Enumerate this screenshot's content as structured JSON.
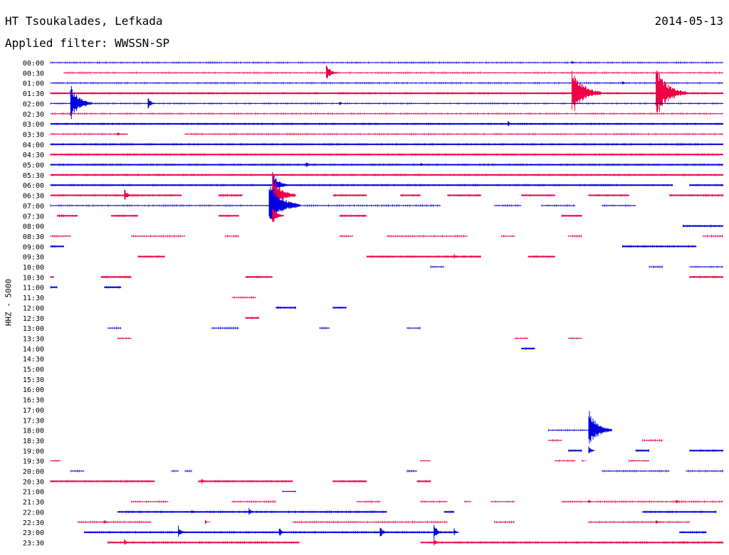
{
  "header": {
    "station": "HT Tsoukalades, Lefkada",
    "date": "2014-05-13",
    "filter": "Applied filter: WWSSN-SP",
    "channel_label": "HHZ - 5000"
  },
  "colors": {
    "even_row": "#0000e0",
    "odd_row": "#ee0044",
    "background": "#ffffff"
  },
  "chart_data": {
    "type": "helicorder",
    "row_interval_minutes": 30,
    "ylabel": "HHZ - 5000",
    "rows": [
      {
        "label": "00:00",
        "segments": [
          [
            0.0,
            1.0,
            1
          ]
        ],
        "events": [
          [
            0.775,
            3
          ]
        ]
      },
      {
        "label": "00:30",
        "segments": [
          [
            0.02,
            1.0,
            1
          ]
        ],
        "events": [
          [
            0.41,
            14
          ]
        ]
      },
      {
        "label": "01:00",
        "segments": [
          [
            0.0,
            1.0,
            1
          ]
        ],
        "events": [
          [
            0.85,
            3
          ]
        ]
      },
      {
        "label": "01:30",
        "segments": [
          [
            0.0,
            1.0,
            2
          ]
        ],
        "events": [
          [
            0.775,
            38
          ],
          [
            0.9,
            40
          ]
        ]
      },
      {
        "label": "02:00",
        "segments": [
          [
            0.0,
            1.0,
            1
          ]
        ],
        "events": [
          [
            0.03,
            28
          ],
          [
            0.145,
            10
          ],
          [
            0.43,
            3
          ]
        ]
      },
      {
        "label": "02:30",
        "segments": [
          [
            0.0,
            1.0,
            1
          ]
        ],
        "events": []
      },
      {
        "label": "03:00",
        "segments": [
          [
            0.0,
            1.0,
            2
          ]
        ],
        "events": [
          [
            0.68,
            5
          ]
        ]
      },
      {
        "label": "03:30",
        "segments": [
          [
            0.0,
            0.115,
            1
          ],
          [
            0.2,
            1.0,
            1
          ]
        ],
        "events": [
          [
            0.1,
            3
          ]
        ]
      },
      {
        "label": "04:00",
        "segments": [
          [
            0.0,
            1.0,
            2
          ]
        ],
        "events": []
      },
      {
        "label": "04:30",
        "segments": [
          [
            0.0,
            1.0,
            2
          ]
        ],
        "events": []
      },
      {
        "label": "05:00",
        "segments": [
          [
            0.0,
            1.0,
            2
          ]
        ],
        "events": [
          [
            0.38,
            6
          ],
          [
            0.55,
            4
          ]
        ]
      },
      {
        "label": "05:30",
        "segments": [
          [
            0.0,
            1.0,
            2
          ]
        ],
        "events": []
      },
      {
        "label": "06:00",
        "segments": [
          [
            0.0,
            0.925,
            2
          ],
          [
            0.95,
            1.0,
            2
          ]
        ],
        "events": [
          [
            0.33,
            20
          ]
        ]
      },
      {
        "label": "06:30",
        "segments": [
          [
            0.0,
            0.195,
            2
          ],
          [
            0.25,
            0.285,
            2
          ],
          [
            0.33,
            0.34,
            2
          ],
          [
            0.42,
            0.47,
            2
          ],
          [
            0.52,
            0.55,
            2
          ],
          [
            0.59,
            0.64,
            2
          ],
          [
            0.7,
            0.75,
            2
          ],
          [
            0.8,
            0.86,
            2
          ],
          [
            0.92,
            1.0,
            2
          ]
        ],
        "events": [
          [
            0.11,
            10
          ],
          [
            0.33,
            30
          ]
        ]
      },
      {
        "label": "07:00",
        "segments": [
          [
            0.0,
            0.34,
            1
          ],
          [
            0.34,
            0.58,
            1
          ],
          [
            0.66,
            0.7,
            1
          ],
          [
            0.73,
            0.78,
            1
          ],
          [
            0.82,
            0.87,
            1
          ]
        ],
        "events": [
          [
            0.325,
            40
          ]
        ]
      },
      {
        "label": "07:30",
        "segments": [
          [
            0.01,
            0.04,
            2
          ],
          [
            0.09,
            0.13,
            2
          ],
          [
            0.25,
            0.28,
            2
          ],
          [
            0.43,
            0.47,
            2
          ],
          [
            0.76,
            0.79,
            2
          ]
        ],
        "events": [
          [
            0.33,
            15
          ]
        ]
      },
      {
        "label": "08:00",
        "segments": [
          [
            0.94,
            1.0,
            2
          ]
        ],
        "events": []
      },
      {
        "label": "08:30",
        "segments": [
          [
            0.0,
            0.03,
            1
          ],
          [
            0.12,
            0.2,
            1
          ],
          [
            0.26,
            0.28,
            1
          ],
          [
            0.43,
            0.45,
            1
          ],
          [
            0.5,
            0.62,
            1
          ],
          [
            0.67,
            0.69,
            1
          ],
          [
            0.77,
            0.79,
            1
          ],
          [
            0.97,
            1.0,
            1
          ]
        ],
        "events": []
      },
      {
        "label": "09:00",
        "segments": [
          [
            0.0,
            0.02,
            2
          ],
          [
            0.85,
            0.96,
            2
          ]
        ],
        "events": []
      },
      {
        "label": "09:30",
        "segments": [
          [
            0.13,
            0.17,
            2
          ],
          [
            0.47,
            0.64,
            2
          ],
          [
            0.71,
            0.75,
            2
          ]
        ],
        "events": [
          [
            0.6,
            4
          ]
        ]
      },
      {
        "label": "10:00",
        "segments": [
          [
            0.565,
            0.585,
            1
          ],
          [
            0.89,
            0.91,
            1
          ],
          [
            0.95,
            1.0,
            1
          ]
        ],
        "events": []
      },
      {
        "label": "10:30",
        "segments": [
          [
            0.0,
            0.005,
            2
          ],
          [
            0.075,
            0.12,
            2
          ],
          [
            0.29,
            0.33,
            2
          ],
          [
            0.95,
            1.0,
            2
          ]
        ],
        "events": []
      },
      {
        "label": "11:00",
        "segments": [
          [
            0.0,
            0.01,
            2
          ],
          [
            0.08,
            0.105,
            2
          ]
        ],
        "events": []
      },
      {
        "label": "11:30",
        "segments": [
          [
            0.27,
            0.305,
            1
          ]
        ],
        "events": []
      },
      {
        "label": "12:00",
        "segments": [
          [
            0.335,
            0.365,
            2
          ],
          [
            0.42,
            0.44,
            2
          ]
        ],
        "events": []
      },
      {
        "label": "12:30",
        "segments": [
          [
            0.29,
            0.31,
            2
          ]
        ],
        "events": []
      },
      {
        "label": "13:00",
        "segments": [
          [
            0.085,
            0.105,
            1
          ],
          [
            0.24,
            0.28,
            1
          ],
          [
            0.4,
            0.415,
            1
          ],
          [
            0.53,
            0.55,
            1
          ]
        ],
        "events": []
      },
      {
        "label": "13:30",
        "segments": [
          [
            0.1,
            0.12,
            1
          ],
          [
            0.69,
            0.71,
            1
          ],
          [
            0.77,
            0.79,
            1
          ]
        ],
        "events": []
      },
      {
        "label": "14:00",
        "segments": [
          [
            0.7,
            0.72,
            2
          ]
        ],
        "events": []
      },
      {
        "label": "14:30",
        "segments": [],
        "events": []
      },
      {
        "label": "15:00",
        "segments": [],
        "events": []
      },
      {
        "label": "15:30",
        "segments": [],
        "events": []
      },
      {
        "label": "16:00",
        "segments": [],
        "events": []
      },
      {
        "label": "16:30",
        "segments": [],
        "events": []
      },
      {
        "label": "17:00",
        "segments": [],
        "events": []
      },
      {
        "label": "17:30",
        "segments": [],
        "events": []
      },
      {
        "label": "18:00",
        "segments": [
          [
            0.74,
            0.82,
            1
          ]
        ],
        "events": [
          [
            0.8,
            30
          ]
        ]
      },
      {
        "label": "18:30",
        "segments": [
          [
            0.74,
            0.76,
            1
          ],
          [
            0.88,
            0.91,
            1
          ]
        ],
        "events": []
      },
      {
        "label": "19:00",
        "segments": [
          [
            0.77,
            0.79,
            2
          ],
          [
            0.87,
            0.89,
            2
          ],
          [
            0.95,
            1.0,
            2
          ]
        ],
        "events": [
          [
            0.8,
            8
          ]
        ]
      },
      {
        "label": "19:30",
        "segments": [
          [
            0.0,
            0.015,
            1
          ],
          [
            0.55,
            0.565,
            1
          ],
          [
            0.75,
            0.78,
            1
          ],
          [
            0.86,
            0.89,
            1
          ]
        ],
        "events": [
          [
            0.79,
            2
          ]
        ]
      },
      {
        "label": "20:00",
        "segments": [
          [
            0.03,
            0.05,
            1
          ],
          [
            0.18,
            0.19,
            1
          ],
          [
            0.2,
            0.21,
            1
          ],
          [
            0.53,
            0.545,
            1
          ],
          [
            0.82,
            0.92,
            1
          ],
          [
            0.945,
            1.0,
            1
          ]
        ],
        "events": []
      },
      {
        "label": "20:30",
        "segments": [
          [
            0.0,
            0.155,
            2
          ],
          [
            0.22,
            0.36,
            2
          ],
          [
            0.42,
            0.47,
            2
          ],
          [
            0.545,
            0.565,
            2
          ]
        ],
        "events": [
          [
            0.225,
            5
          ]
        ]
      },
      {
        "label": "21:00",
        "segments": [
          [
            0.345,
            0.365,
            1
          ]
        ],
        "events": []
      },
      {
        "label": "21:30",
        "segments": [
          [
            0.12,
            0.175,
            1
          ],
          [
            0.27,
            0.335,
            1
          ],
          [
            0.455,
            0.49,
            1
          ],
          [
            0.55,
            0.59,
            1
          ],
          [
            0.615,
            0.625,
            1
          ],
          [
            0.655,
            0.69,
            1
          ],
          [
            0.76,
            0.94,
            1
          ],
          [
            0.94,
            1.0,
            1
          ]
        ],
        "events": [
          [
            0.8,
            4
          ],
          [
            0.93,
            3
          ]
        ]
      },
      {
        "label": "22:00",
        "segments": [
          [
            0.1,
            0.5,
            2
          ],
          [
            0.585,
            0.6,
            2
          ],
          [
            0.88,
            0.99,
            2
          ]
        ],
        "events": [
          [
            0.295,
            6
          ],
          [
            0.21,
            4
          ]
        ]
      },
      {
        "label": "22:30",
        "segments": [
          [
            0.04,
            0.15,
            1
          ],
          [
            0.36,
            0.59,
            1
          ],
          [
            0.66,
            0.69,
            1
          ],
          [
            0.8,
            0.95,
            1
          ]
        ],
        "events": [
          [
            0.08,
            4
          ],
          [
            0.23,
            3
          ],
          [
            0.9,
            4
          ]
        ]
      },
      {
        "label": "23:00",
        "segments": [
          [
            0.05,
            0.6,
            2
          ],
          [
            0.935,
            0.975,
            2
          ]
        ],
        "events": [
          [
            0.19,
            10
          ],
          [
            0.34,
            8
          ],
          [
            0.49,
            10
          ],
          [
            0.57,
            12
          ],
          [
            0.6,
            6
          ]
        ]
      },
      {
        "label": "23:30",
        "segments": [
          [
            0.085,
            0.37,
            2
          ],
          [
            0.55,
            1.0,
            2
          ]
        ],
        "events": [
          [
            0.11,
            6
          ],
          [
            0.57,
            7
          ],
          [
            0.94,
            3
          ]
        ]
      }
    ]
  }
}
